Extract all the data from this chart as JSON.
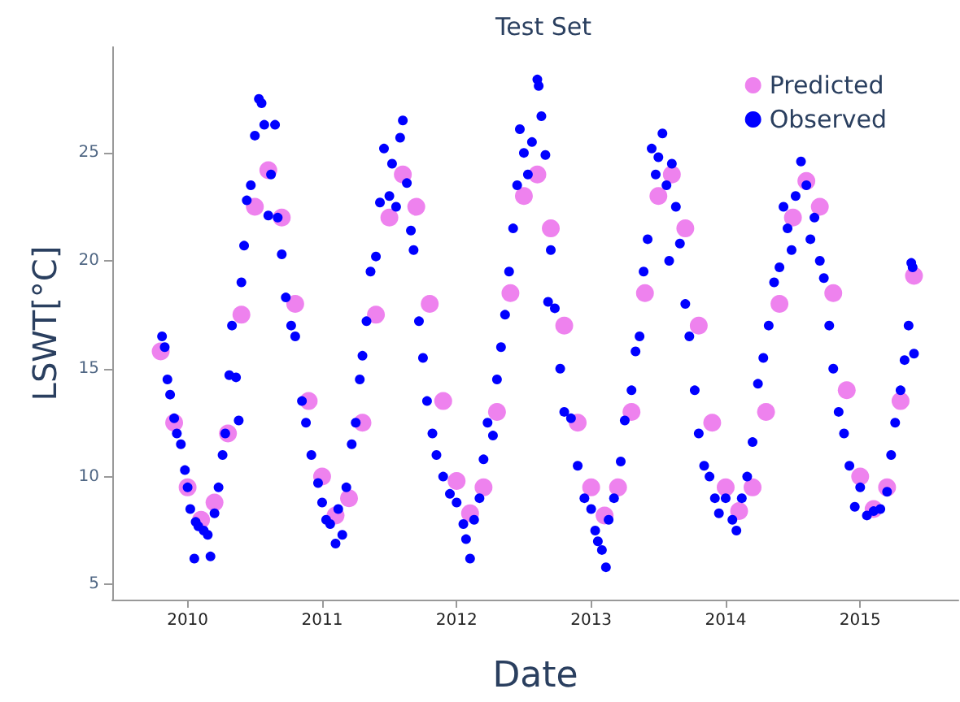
{
  "chart_data": {
    "type": "scatter",
    "title": "Test Set",
    "xlabel": "Date",
    "ylabel": "LSWT[°C]",
    "xlim": [
      2009.44,
      2015.73
    ],
    "xticks": [
      2010,
      2011,
      2012,
      2013,
      2014,
      2015
    ],
    "ylim": [
      4.3,
      29.9
    ],
    "yticks": [
      5,
      10,
      15,
      20,
      25
    ],
    "grid": false,
    "legend": "top right",
    "marker": "circle",
    "series": [
      {
        "name": "Predicted",
        "color": "#ee82ee",
        "x": [
          2009.8,
          2009.9,
          2010.0,
          2010.1,
          2010.2,
          2010.3,
          2010.4,
          2010.5,
          2010.6,
          2010.7,
          2010.8,
          2010.9,
          2011.0,
          2011.1,
          2011.2,
          2011.3,
          2011.4,
          2011.5,
          2011.6,
          2011.7,
          2011.8,
          2011.9,
          2012.0,
          2012.1,
          2012.2,
          2012.3,
          2012.4,
          2012.5,
          2012.6,
          2012.7,
          2012.8,
          2012.9,
          2013.0,
          2013.1,
          2013.2,
          2013.3,
          2013.4,
          2013.5,
          2013.6,
          2013.7,
          2013.8,
          2013.9,
          2014.0,
          2014.1,
          2014.2,
          2014.3,
          2014.4,
          2014.5,
          2014.6,
          2014.7,
          2014.8,
          2014.9,
          2015.0,
          2015.1,
          2015.2,
          2015.3,
          2015.4
        ],
        "values": [
          15.8,
          12.5,
          9.5,
          8.0,
          8.8,
          12,
          17.5,
          22.5,
          24.2,
          22,
          18,
          13.5,
          10,
          8.2,
          9,
          12.5,
          17.5,
          22,
          24,
          22.5,
          18,
          13.5,
          9.8,
          8.3,
          9.5,
          13,
          18.5,
          23,
          24,
          21.5,
          17,
          12.5,
          9.5,
          8.2,
          9.5,
          13,
          18.5,
          23,
          24,
          21.5,
          17,
          12.5,
          9.5,
          8.4,
          9.5,
          13,
          18,
          22,
          23.7,
          22.5,
          18.5,
          14,
          10,
          8.5,
          9.5,
          13.5,
          19.3
        ]
      },
      {
        "name": "Observed",
        "color": "#0000ff",
        "x": [
          2009.81,
          2009.83,
          2009.85,
          2009.87,
          2009.9,
          2009.92,
          2009.95,
          2009.98,
          2010.0,
          2010.02,
          2010.05,
          2010.06,
          2010.08,
          2010.12,
          2010.15,
          2010.17,
          2010.2,
          2010.23,
          2010.26,
          2010.28,
          2010.31,
          2010.33,
          2010.36,
          2010.38,
          2010.4,
          2010.42,
          2010.44,
          2010.47,
          2010.5,
          2010.53,
          2010.55,
          2010.57,
          2010.6,
          2010.62,
          2010.65,
          2010.67,
          2010.7,
          2010.73,
          2010.77,
          2010.8,
          2010.85,
          2010.88,
          2010.92,
          2010.97,
          2011.0,
          2011.03,
          2011.06,
          2011.1,
          2011.12,
          2011.15,
          2011.18,
          2011.22,
          2011.25,
          2011.28,
          2011.3,
          2011.33,
          2011.36,
          2011.4,
          2011.43,
          2011.46,
          2011.5,
          2011.52,
          2011.55,
          2011.58,
          2011.6,
          2011.63,
          2011.66,
          2011.68,
          2011.72,
          2011.75,
          2011.78,
          2011.82,
          2011.85,
          2011.9,
          2011.95,
          2012.0,
          2012.05,
          2012.07,
          2012.1,
          2012.13,
          2012.17,
          2012.2,
          2012.23,
          2012.27,
          2012.3,
          2012.33,
          2012.36,
          2012.39,
          2012.42,
          2012.45,
          2012.47,
          2012.5,
          2012.53,
          2012.56,
          2012.6,
          2012.61,
          2012.63,
          2012.66,
          2012.68,
          2012.7,
          2012.73,
          2012.77,
          2012.8,
          2012.85,
          2012.9,
          2012.95,
          2013.0,
          2013.03,
          2013.05,
          2013.08,
          2013.11,
          2013.13,
          2013.17,
          2013.22,
          2013.25,
          2013.3,
          2013.33,
          2013.36,
          2013.39,
          2013.42,
          2013.45,
          2013.48,
          2013.5,
          2013.53,
          2013.56,
          2013.58,
          2013.6,
          2013.63,
          2013.66,
          2013.7,
          2013.73,
          2013.77,
          2013.8,
          2013.84,
          2013.88,
          2013.92,
          2013.95,
          2014.0,
          2014.05,
          2014.08,
          2014.12,
          2014.16,
          2014.2,
          2014.24,
          2014.28,
          2014.32,
          2014.36,
          2014.4,
          2014.43,
          2014.46,
          2014.49,
          2014.52,
          2014.56,
          2014.6,
          2014.63,
          2014.66,
          2014.7,
          2014.73,
          2014.77,
          2014.8,
          2014.84,
          2014.88,
          2014.92,
          2014.96,
          2015.0,
          2015.05,
          2015.1,
          2015.15,
          2015.2,
          2015.23,
          2015.26,
          2015.3,
          2015.33,
          2015.36,
          2015.38,
          2015.39,
          2015.4
        ],
        "values": [
          16.5,
          16.0,
          14.5,
          13.8,
          12.7,
          12.0,
          11.5,
          10.3,
          9.5,
          8.5,
          6.2,
          7.9,
          7.7,
          7.5,
          7.3,
          6.3,
          8.3,
          9.5,
          11.0,
          12.0,
          14.7,
          17.0,
          14.6,
          12.6,
          19.0,
          20.7,
          22.8,
          23.5,
          25.8,
          27.5,
          27.3,
          26.3,
          22.1,
          24.0,
          26.3,
          22.0,
          20.3,
          18.3,
          17.0,
          16.5,
          13.5,
          12.5,
          11.0,
          9.7,
          8.8,
          8.0,
          7.8,
          6.9,
          8.5,
          7.3,
          9.5,
          11.5,
          12.5,
          14.5,
          15.6,
          17.2,
          19.5,
          20.2,
          22.7,
          25.2,
          23.0,
          24.5,
          22.5,
          25.7,
          26.5,
          23.6,
          21.4,
          20.5,
          17.2,
          15.5,
          13.5,
          12.0,
          11.0,
          10.0,
          9.2,
          8.8,
          7.8,
          7.1,
          6.2,
          8.0,
          9.0,
          10.8,
          12.5,
          11.9,
          14.5,
          16.0,
          17.5,
          19.5,
          21.5,
          23.5,
          26.1,
          25.0,
          24.0,
          25.5,
          28.4,
          28.1,
          26.7,
          24.9,
          18.1,
          20.5,
          17.8,
          15.0,
          13.0,
          12.7,
          10.5,
          9.0,
          8.5,
          7.5,
          7.0,
          6.6,
          5.8,
          8.0,
          9.0,
          10.7,
          12.6,
          14.0,
          15.8,
          16.5,
          19.5,
          21.0,
          25.2,
          24.0,
          24.8,
          25.9,
          23.5,
          20.0,
          24.5,
          22.5,
          20.8,
          18.0,
          16.5,
          14.0,
          12.0,
          10.5,
          10.0,
          9.0,
          8.3,
          9.0,
          8.0,
          7.5,
          9.0,
          10.0,
          11.6,
          14.3,
          15.5,
          17.0,
          19.0,
          19.7,
          22.5,
          21.5,
          20.5,
          23.0,
          24.6,
          23.5,
          21.0,
          22.0,
          20.0,
          19.2,
          17.0,
          15.0,
          13.0,
          12.0,
          10.5,
          8.6,
          9.5,
          8.2,
          8.4,
          8.5,
          9.3,
          11.0,
          12.5,
          14.0,
          15.4,
          17.0,
          19.9,
          19.7,
          15.7
        ]
      }
    ]
  }
}
